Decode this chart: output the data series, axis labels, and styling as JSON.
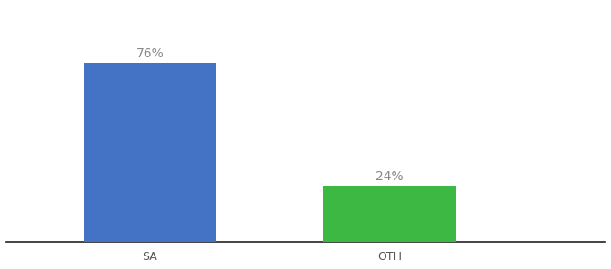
{
  "categories": [
    "SA",
    "OTH"
  ],
  "values": [
    76,
    24
  ],
  "bar_colors": [
    "#4472c4",
    "#3cb843"
  ],
  "label_texts": [
    "76%",
    "24%"
  ],
  "ylim": [
    0,
    100
  ],
  "background_color": "#ffffff",
  "label_color": "#888888",
  "label_fontsize": 10,
  "tick_fontsize": 9,
  "spine_color": "#222222",
  "tick_color": "#555555"
}
